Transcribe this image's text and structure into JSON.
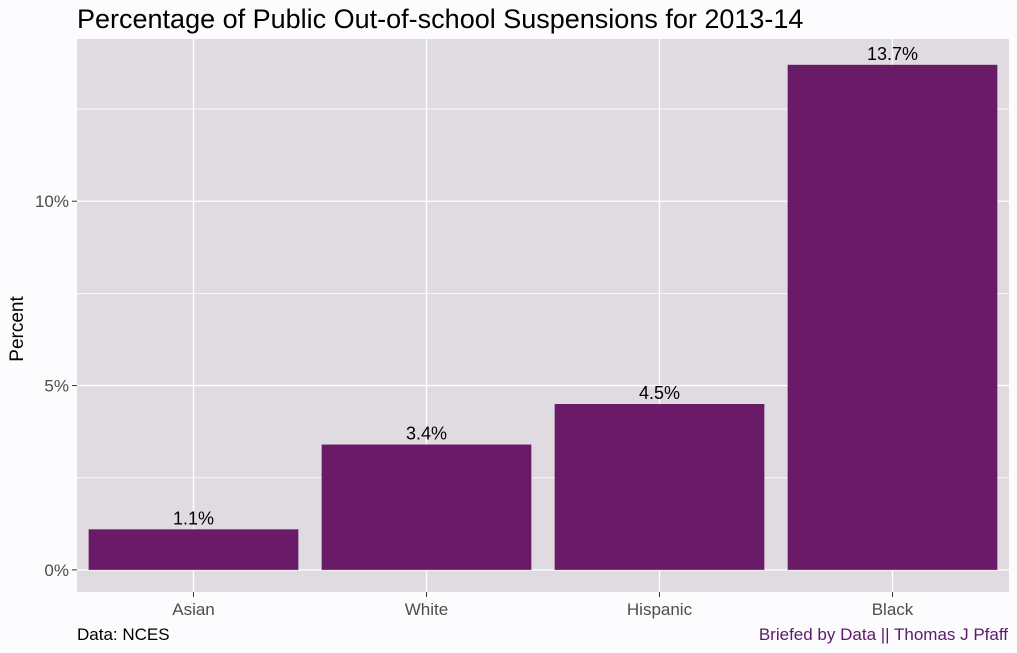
{
  "chart_data": {
    "type": "bar",
    "title": "Percentage of Public Out-of-school Suspensions for 2013-14",
    "categories": [
      "Asian",
      "White",
      "Hispanic",
      "Black"
    ],
    "values": [
      1.1,
      3.4,
      4.5,
      13.7
    ],
    "value_labels": [
      "1.1%",
      "3.4%",
      "4.5%",
      "13.7%"
    ],
    "xlabel": "",
    "ylabel": "Percent",
    "ylim": [
      -0.6,
      14.4
    ],
    "y_ticks": [
      0,
      5,
      10
    ],
    "y_tick_labels": [
      "0%",
      "5%",
      "10%"
    ],
    "grid": true,
    "bar_color": "#6a1b68",
    "panel_color": "#e0dbe0"
  },
  "caption": {
    "source": "Data: NCES",
    "credit": "Briefed by Data || Thomas J Pfaff"
  }
}
